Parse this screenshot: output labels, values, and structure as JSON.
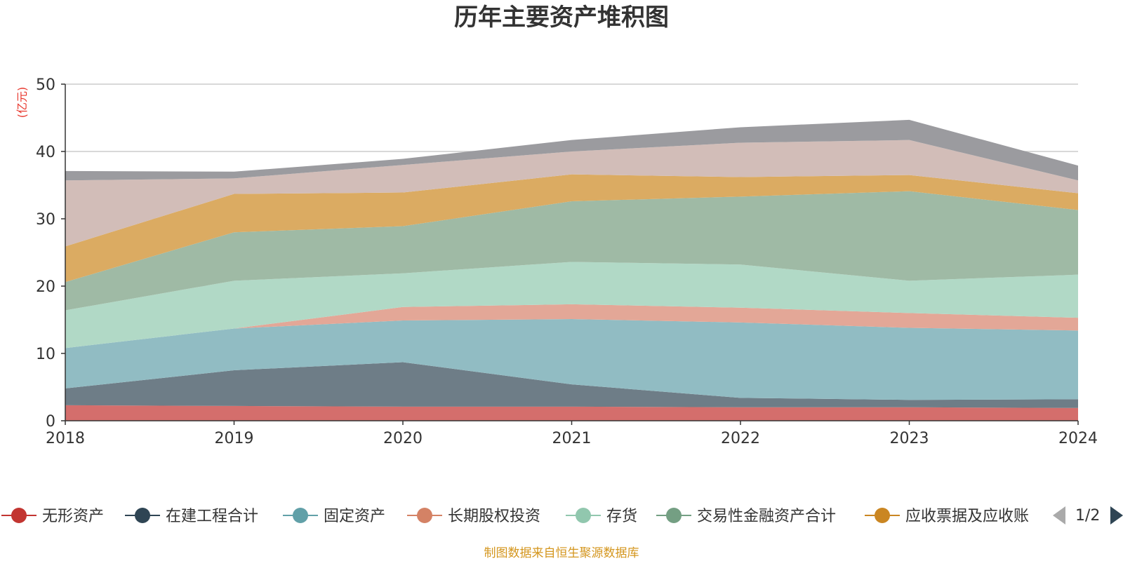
{
  "chart_data": {
    "type": "area",
    "stacked": true,
    "title": "历年主要资产堆积图",
    "unit_label": "(亿元)",
    "x": [
      "2018",
      "2019",
      "2020",
      "2021",
      "2022",
      "2023",
      "2024"
    ],
    "y_ticks": [
      "0",
      "10",
      "20",
      "30",
      "40",
      "50"
    ],
    "ylim": [
      0,
      50
    ],
    "grid": true,
    "legend_position": "bottom",
    "series": [
      {
        "name": "无形资产",
        "color": "#d46e6c",
        "legend_color": "#c23531",
        "values": [
          2.3,
          2.2,
          2.1,
          2.1,
          2.0,
          2.0,
          1.9
        ]
      },
      {
        "name": "在建工程合计",
        "color": "#6e7d87",
        "legend_color": "#2f4554",
        "values": [
          2.5,
          5.3,
          6.6,
          3.3,
          1.4,
          1.1,
          1.3
        ]
      },
      {
        "name": "固定资产",
        "color": "#91bcc3",
        "legend_color": "#61a0a8",
        "values": [
          6.0,
          6.2,
          6.2,
          9.7,
          11.2,
          10.7,
          10.2
        ]
      },
      {
        "name": "长期股权投资",
        "color": "#e3a797",
        "legend_color": "#d48265",
        "values": [
          0.0,
          0.0,
          2.0,
          2.2,
          2.2,
          2.2,
          1.9
        ]
      },
      {
        "name": "存货",
        "color": "#b1d9c6",
        "legend_color": "#91c7ae",
        "values": [
          5.6,
          7.1,
          5.0,
          6.3,
          6.4,
          4.8,
          6.4
        ]
      },
      {
        "name": "交易性金融资产合计",
        "color": "#9fbaa5",
        "legend_color": "#749f83",
        "values": [
          4.2,
          7.2,
          7.0,
          9.0,
          10.1,
          13.3,
          9.6
        ]
      },
      {
        "name": "应收票据及应收账",
        "color": "#dbab62",
        "legend_color": "#ca8622",
        "values": [
          5.3,
          5.7,
          5.0,
          4.0,
          2.9,
          2.4,
          2.5
        ]
      },
      {
        "name": "",
        "color": "#d2bdb8",
        "values": [
          9.8,
          2.3,
          4.1,
          3.4,
          5.1,
          5.2,
          1.9
        ]
      },
      {
        "name": "",
        "color": "#9b9b9f",
        "values": [
          1.4,
          1.0,
          0.9,
          1.7,
          2.3,
          3.0,
          2.2
        ]
      }
    ]
  },
  "legend_pager": {
    "text": "1/2",
    "prev_icon": "triangle-left-icon",
    "next_icon": "triangle-right-icon"
  },
  "source_note": "制图数据来自恒生聚源数据库"
}
